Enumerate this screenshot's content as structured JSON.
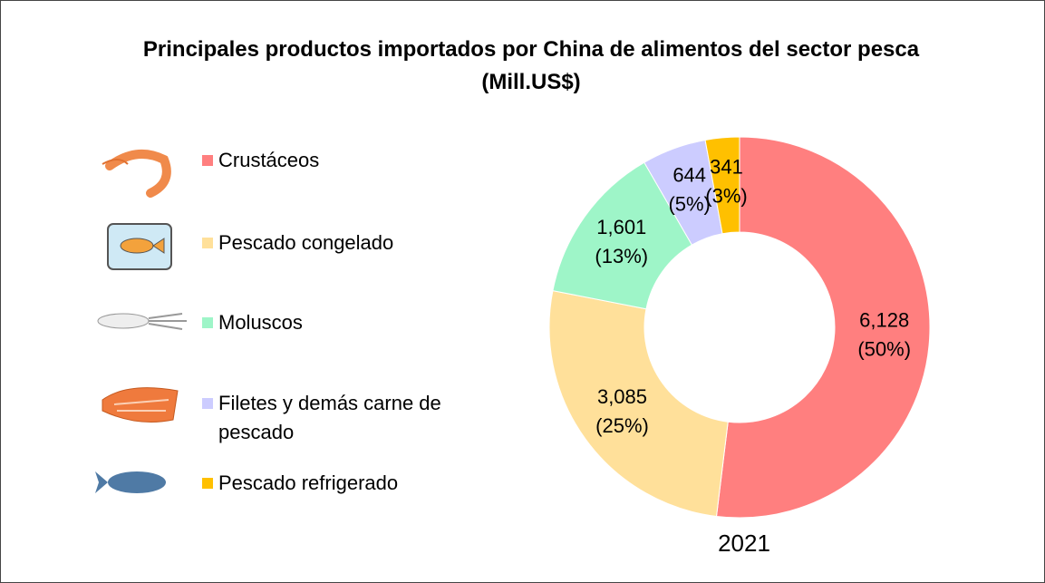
{
  "chart_data": {
    "type": "pie",
    "title": "Principales productos importados por China de alimentos del sector pesca (Mill.US$)",
    "categories": [
      "Crustáceos",
      "Pescado congelado",
      "Moluscos",
      "Filetes y demás carne de pescado",
      "Pescado refrigerado"
    ],
    "values": [
      6128,
      3085,
      1601,
      644,
      341
    ],
    "value_labels": [
      "6,128",
      "3,085",
      "1,601",
      "644",
      "341"
    ],
    "percentages": [
      50,
      25,
      13,
      5,
      3
    ],
    "percentage_labels": [
      "(50%)",
      "(25%)",
      "(13%)",
      "(5%)",
      "(3%)"
    ],
    "colors": [
      "#ff7f7f",
      "#ffe09a",
      "#9ef5c8",
      "#ccccff",
      "#ffc000"
    ],
    "caption": "2021",
    "donut": true
  }
}
